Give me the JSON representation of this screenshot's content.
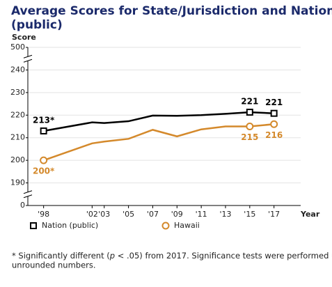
{
  "chart_data": {
    "type": "line",
    "title": [
      "Average Scores for State/Jurisdiction and Nation",
      "(public)"
    ],
    "ylabel": "Score",
    "xlabel": "Year",
    "x": [
      1998,
      2002,
      2003,
      2005,
      2007,
      2009,
      2011,
      2013,
      2015,
      2017
    ],
    "xlim": [
      1996.7,
      2019.2
    ],
    "xticks": [
      {
        "value": 1998,
        "label": "'98"
      },
      {
        "value": 2002,
        "label": "'02"
      },
      {
        "value": 2003,
        "label": "'03"
      },
      {
        "value": 2005,
        "label": "'05"
      },
      {
        "value": 2007,
        "label": "'07"
      },
      {
        "value": 2009,
        "label": "'09"
      },
      {
        "value": 2011,
        "label": "'11"
      },
      {
        "value": 2013,
        "label": "'13"
      },
      {
        "value": 2015,
        "label": "'15"
      },
      {
        "value": 2017,
        "label": "'17"
      }
    ],
    "ylim": [
      0,
      500
    ],
    "yticks": [
      0,
      190,
      200,
      210,
      220,
      230,
      240,
      500
    ],
    "y_scale": "broken",
    "grid": true,
    "legend": "bottom",
    "series": [
      {
        "name": "Nation (public)",
        "color": "#000000",
        "marker": "square",
        "values": [
          213,
          216.8,
          216.5,
          217.3,
          219.8,
          219.7,
          220,
          220.6,
          221.3,
          220.8
        ],
        "value_labels": [
          "213*",
          null,
          null,
          null,
          null,
          null,
          null,
          null,
          "221",
          "221"
        ]
      },
      {
        "name": "Hawaii",
        "color": "#d4892b",
        "marker": "circle",
        "values": [
          200,
          207.5,
          208.3,
          209.5,
          213.5,
          210.6,
          213.7,
          215,
          215,
          216
        ],
        "value_labels": [
          "200*",
          null,
          null,
          null,
          null,
          null,
          null,
          null,
          "215",
          "216"
        ]
      }
    ],
    "footnote": [
      "* Significantly different (",
      "p",
      " < .05) from 2017. Significance tests were performed using",
      "unrounded numbers."
    ]
  }
}
